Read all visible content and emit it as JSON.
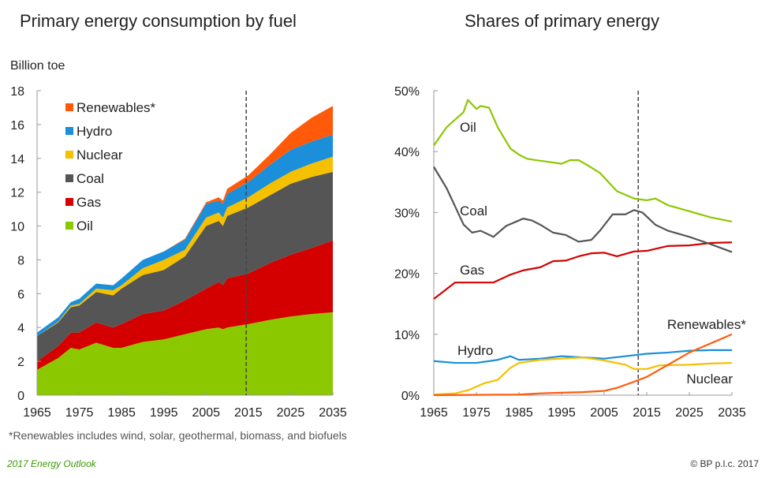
{
  "footnote": "*Renewables includes wind, solar, geothermal, biomass, and biofuels",
  "source_left": "2017 Energy Outlook",
  "source_right": "© BP p.l.c. 2017",
  "colors": {
    "Oil": "#8cc800",
    "Gas": "#d40000",
    "Coal": "#555555",
    "Nuclear": "#f5c000",
    "Hydro": "#1b8fd9",
    "Renewables*": "#ff5a0a"
  },
  "chart_data": [
    {
      "type": "area",
      "stacked": true,
      "title": "Primary energy consumption by fuel",
      "ylabel": "Billion toe",
      "xlim": [
        1965,
        2035
      ],
      "ylim": [
        0,
        18
      ],
      "xticks": [
        "1965",
        "1975",
        "1985",
        "1995",
        "2005",
        "2015",
        "2025",
        "2035"
      ],
      "yticks": [
        "0",
        "2",
        "4",
        "6",
        "8",
        "10",
        "12",
        "14",
        "16",
        "18"
      ],
      "projection_line_year": 2014.5,
      "legend": "top-left",
      "x": [
        1965,
        1970,
        1973,
        1975,
        1979,
        1983,
        1985,
        1990,
        1995,
        2000,
        2005,
        2008,
        2009,
        2010,
        2015,
        2020,
        2025,
        2030,
        2035
      ],
      "series": [
        {
          "name": "Oil",
          "values": [
            1.5,
            2.2,
            2.8,
            2.7,
            3.1,
            2.8,
            2.8,
            3.15,
            3.3,
            3.6,
            3.9,
            4.0,
            3.9,
            4.0,
            4.2,
            4.45,
            4.65,
            4.8,
            4.9
          ]
        },
        {
          "name": "Gas",
          "values": [
            0.5,
            0.7,
            0.9,
            1.0,
            1.2,
            1.2,
            1.4,
            1.65,
            1.7,
            2.0,
            2.4,
            2.7,
            2.6,
            2.9,
            3.0,
            3.35,
            3.65,
            3.9,
            4.25
          ]
        },
        {
          "name": "Coal",
          "values": [
            1.5,
            1.4,
            1.5,
            1.6,
            1.8,
            1.9,
            2.1,
            2.3,
            2.4,
            2.6,
            3.7,
            3.6,
            3.5,
            3.7,
            3.9,
            4.0,
            4.2,
            4.2,
            4.05
          ]
        },
        {
          "name": "Nuclear",
          "values": [
            0,
            0.05,
            0.1,
            0.1,
            0.2,
            0.3,
            0.2,
            0.4,
            0.6,
            0.4,
            0.5,
            0.5,
            0.5,
            0.5,
            0.6,
            0.7,
            0.7,
            0.8,
            0.9
          ]
        },
        {
          "name": "Hydro",
          "values": [
            0.2,
            0.25,
            0.2,
            0.3,
            0.3,
            0.3,
            0.4,
            0.5,
            0.5,
            0.6,
            0.8,
            0.7,
            0.8,
            0.8,
            0.9,
            1.1,
            1.3,
            1.3,
            1.3
          ]
        },
        {
          "name": "Renewables*",
          "values": [
            0,
            0,
            0,
            0,
            0,
            0,
            0,
            0,
            0,
            0.05,
            0.1,
            0.2,
            0.2,
            0.3,
            0.4,
            0.6,
            1.0,
            1.4,
            1.7
          ]
        }
      ]
    },
    {
      "type": "line",
      "title": "Shares of primary energy",
      "xlim": [
        1965,
        2035
      ],
      "ylim": [
        0,
        50
      ],
      "xticks": [
        "1965",
        "1975",
        "1985",
        "1995",
        "2005",
        "2015",
        "2025",
        "2035"
      ],
      "yticks": [
        "0%",
        "10%",
        "20%",
        "30%",
        "40%",
        "50%"
      ],
      "projection_line_year": 2013,
      "series": [
        {
          "name": "Oil",
          "x": [
            1965,
            1968,
            1972,
            1973,
            1975,
            1976,
            1978,
            1980,
            1983,
            1985,
            1987,
            1990,
            1993,
            1995,
            1997,
            1999,
            2001,
            2004,
            2008,
            2012,
            2015,
            2017,
            2020,
            2025,
            2030,
            2035
          ],
          "values": [
            41,
            44,
            46.5,
            48.5,
            47,
            47.5,
            47.2,
            44,
            40.5,
            39.5,
            38.8,
            38.5,
            38.2,
            38,
            38.6,
            38.6,
            37.8,
            36.5,
            33.5,
            32.3,
            32,
            32.3,
            31.2,
            30.2,
            29.2,
            28.5
          ]
        },
        {
          "name": "Coal",
          "x": [
            1965,
            1968,
            1972,
            1974,
            1976,
            1979,
            1982,
            1985,
            1986,
            1988,
            1990,
            1993,
            1996,
            1999,
            2002,
            2004,
            2007,
            2010,
            2012,
            2014,
            2017,
            2020,
            2025,
            2030,
            2035
          ],
          "values": [
            37.5,
            34,
            28,
            26.7,
            27,
            26,
            27.8,
            28.7,
            29,
            28.7,
            28,
            26.7,
            26.3,
            25.2,
            25.5,
            27,
            29.7,
            29.7,
            30.4,
            30,
            28,
            27,
            26,
            24.8,
            23.5
          ]
        },
        {
          "name": "Gas",
          "x": [
            1965,
            1970,
            1975,
            1979,
            1983,
            1986,
            1990,
            1993,
            1996,
            1999,
            2002,
            2005,
            2008,
            2012,
            2015,
            2020,
            2025,
            2030,
            2035
          ],
          "values": [
            15.8,
            18.5,
            18.5,
            18.5,
            19.8,
            20.5,
            21,
            22,
            22.1,
            22.8,
            23.3,
            23.4,
            22.8,
            23.6,
            23.7,
            24.5,
            24.6,
            25,
            25.1
          ]
        },
        {
          "name": "Hydro",
          "x": [
            1965,
            1970,
            1975,
            1980,
            1983,
            1985,
            1990,
            1995,
            2000,
            2005,
            2010,
            2015,
            2020,
            2025,
            2030,
            2035
          ],
          "values": [
            5.6,
            5.3,
            5.3,
            5.8,
            6.4,
            5.8,
            6.0,
            6.4,
            6.2,
            6.0,
            6.4,
            6.8,
            7.0,
            7.3,
            7.4,
            7.4
          ]
        },
        {
          "name": "Nuclear",
          "x": [
            1965,
            1970,
            1973,
            1977,
            1980,
            1983,
            1985,
            1990,
            1995,
            2000,
            2005,
            2010,
            2012,
            2015,
            2018,
            2025,
            2030,
            2035
          ],
          "values": [
            0.1,
            0.3,
            0.8,
            2.0,
            2.5,
            4.5,
            5.3,
            5.8,
            6.0,
            6.2,
            5.7,
            5.0,
            4.3,
            4.3,
            4.9,
            5.0,
            5.2,
            5.3
          ]
        },
        {
          "name": "Renewables*",
          "x": [
            1965,
            1985,
            1990,
            1995,
            2000,
            2005,
            2008,
            2012,
            2015,
            2020,
            2025,
            2030,
            2035
          ],
          "values": [
            0,
            0.1,
            0.3,
            0.4,
            0.5,
            0.7,
            1.2,
            2.2,
            3.0,
            5.0,
            7.0,
            8.5,
            10.0
          ]
        }
      ]
    }
  ]
}
